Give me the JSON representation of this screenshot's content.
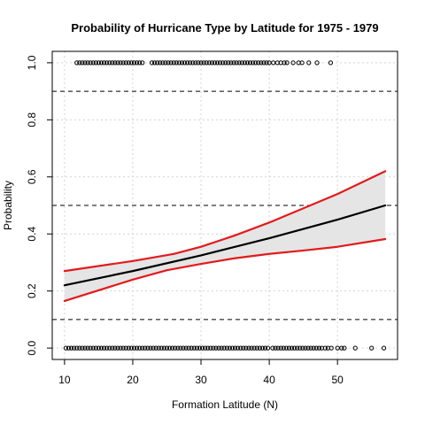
{
  "chart_data": {
    "type": "scatter",
    "title": "Probability of Hurricane Type by Latitude for 1975 - 1979",
    "xlabel": "Formation Latitude (N)",
    "ylabel": "Probability",
    "xlim": [
      8.2,
      58.8
    ],
    "ylim": [
      -0.04,
      1.04
    ],
    "x_ticks": [
      10,
      20,
      30,
      40,
      50
    ],
    "x_tick_labels": [
      "10",
      "20",
      "30",
      "40",
      "50"
    ],
    "y_ticks": [
      0.0,
      0.2,
      0.4,
      0.6,
      0.8,
      1.0
    ],
    "y_tick_labels": [
      "0.0",
      "0.2",
      "0.4",
      "0.6",
      "0.8",
      "1.0"
    ],
    "grid": true,
    "reference_lines": [
      0.1,
      0.5,
      0.9
    ],
    "colors": {
      "fit": "#000000",
      "confidence_band": "#e5e5e5",
      "confidence_bounds": "#e31a1c",
      "points": "#000000",
      "grid": "#d3d3d3"
    },
    "series": [
      {
        "type": "points",
        "y": 1,
        "x": [
          11.8,
          12.2,
          12.6,
          13.0,
          13.4,
          13.8,
          14.2,
          14.6,
          15.0,
          15.4,
          15.8,
          16.2,
          16.6,
          17.0,
          17.4,
          17.8,
          18.2,
          18.6,
          19.0,
          19.4,
          19.8,
          20.2,
          20.6,
          21.0,
          21.4,
          22.8,
          23.2,
          23.6,
          24.0,
          24.4,
          24.8,
          25.2,
          25.6,
          26.0,
          26.4,
          26.8,
          27.2,
          27.6,
          28.0,
          28.4,
          28.8,
          29.2,
          29.6,
          30.0,
          30.4,
          30.8,
          31.2,
          31.6,
          32.0,
          32.4,
          32.8,
          33.2,
          33.6,
          34.0,
          34.4,
          34.8,
          35.2,
          35.6,
          36.0,
          36.4,
          36.8,
          37.2,
          37.6,
          38.0,
          38.4,
          38.8,
          39.2,
          39.6,
          40.0,
          40.6,
          41.2,
          41.7,
          42.2,
          42.6,
          43.5,
          44.3,
          44.8,
          45.8,
          47.0,
          49.0
        ]
      },
      {
        "type": "points",
        "y": 0,
        "x": [
          10.2,
          10.6,
          11.0,
          11.4,
          11.8,
          12.2,
          12.6,
          13.0,
          13.4,
          13.8,
          14.2,
          14.6,
          15.0,
          15.4,
          15.8,
          16.2,
          16.6,
          17.0,
          17.4,
          17.8,
          18.2,
          18.6,
          19.0,
          19.4,
          19.8,
          20.2,
          20.6,
          21.0,
          21.4,
          21.8,
          22.2,
          22.6,
          23.0,
          23.4,
          23.8,
          24.2,
          24.6,
          25.0,
          25.4,
          25.8,
          26.2,
          26.6,
          27.0,
          27.4,
          27.8,
          28.2,
          28.6,
          29.0,
          29.4,
          29.8,
          30.2,
          30.6,
          31.0,
          31.4,
          31.8,
          32.2,
          32.6,
          33.0,
          33.4,
          33.8,
          34.2,
          34.6,
          35.0,
          35.4,
          35.8,
          36.2,
          36.6,
          37.0,
          37.4,
          37.8,
          38.2,
          38.6,
          39.0,
          39.4,
          39.8,
          40.5,
          40.9,
          41.3,
          41.7,
          42.1,
          42.5,
          42.9,
          43.3,
          43.7,
          44.1,
          44.5,
          44.9,
          45.3,
          45.7,
          46.1,
          46.5,
          46.9,
          47.3,
          47.7,
          48.2,
          48.6,
          49.1,
          50.0,
          50.6,
          51.0,
          52.6,
          55.0,
          56.8
        ]
      },
      {
        "type": "line",
        "name": "",
        "x": [
          10,
          20,
          30,
          40,
          50,
          57
        ],
        "y": [
          0.22,
          0.27,
          0.325,
          0.385,
          0.45,
          0.5
        ]
      },
      {
        "type": "line",
        "name": "",
        "x": [
          10,
          20,
          26,
          30,
          35,
          40,
          45,
          50,
          57
        ],
        "y": [
          0.27,
          0.305,
          0.33,
          0.355,
          0.395,
          0.44,
          0.49,
          0.54,
          0.62
        ]
      },
      {
        "type": "line",
        "name": "",
        "x": [
          10,
          20,
          25,
          30,
          35,
          40,
          45,
          50,
          57
        ],
        "y": [
          0.165,
          0.24,
          0.273,
          0.295,
          0.315,
          0.33,
          0.342,
          0.355,
          0.382
        ]
      }
    ]
  }
}
